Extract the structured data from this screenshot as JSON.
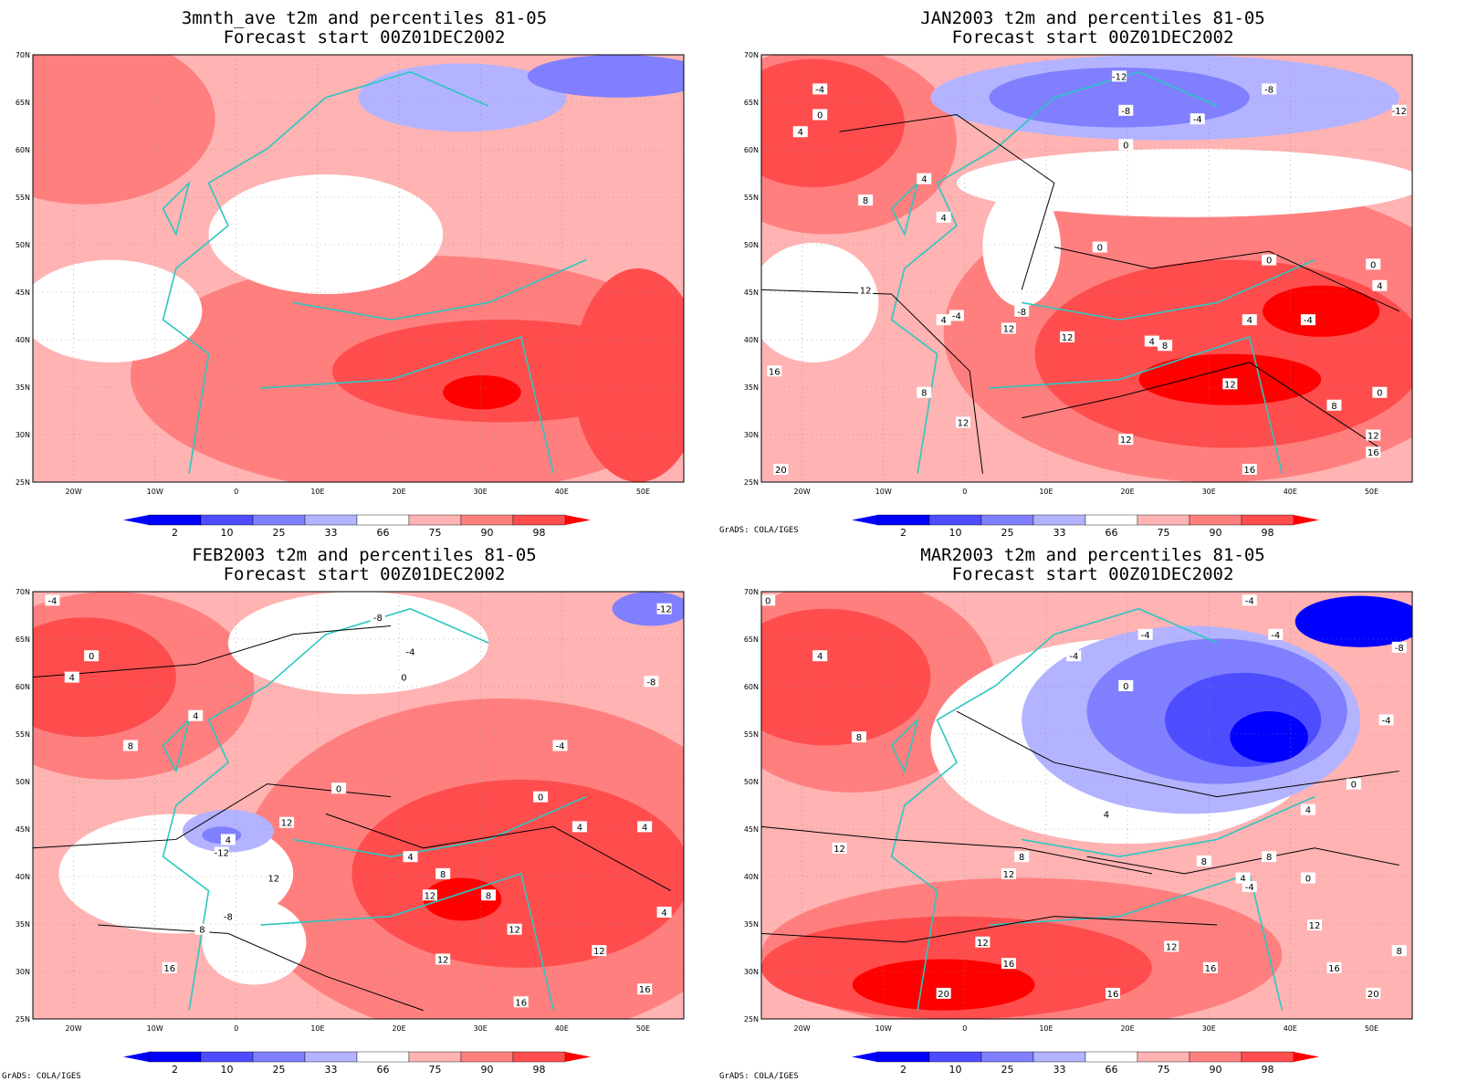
{
  "colors": {
    "p2": "#0000ff",
    "p10": "#4d4dff",
    "p25": "#7f7fff",
    "p33": "#b3b3ff",
    "mid": "#ffffff",
    "p66": "#ffb3b3",
    "p75": "#ff7f7f",
    "p90": "#ff4d4d",
    "p98": "#ff0000",
    "coast": "#2bc7c0",
    "contour": "#000000",
    "grid": "#8a8a8a"
  },
  "axes": {
    "lon_labels": [
      "20W",
      "10W",
      "0",
      "10E",
      "20E",
      "30E",
      "40E",
      "50E"
    ],
    "lat_labels": [
      "70N",
      "65N",
      "60N",
      "55N",
      "50N",
      "45N",
      "40N",
      "35N",
      "30N",
      "25N"
    ]
  },
  "colorbar": {
    "labels": [
      "2",
      "10",
      "25",
      "33",
      "66",
      "75",
      "90",
      "98"
    ]
  },
  "credit": "GrADS: COLA/IGES",
  "panels": [
    {
      "title_line1": "3mnth_ave t2m and percentiles 81-05",
      "title_line2": "Forecast start 00Z01DEC2002",
      "contour_labels": []
    },
    {
      "title_line1": "JAN2003 t2m and percentiles 81-05",
      "title_line2": "Forecast start 00Z01DEC2002",
      "contour_labels": [
        "-4",
        "0",
        "4",
        "-12",
        "-8",
        "-4",
        "-8",
        "-12",
        "0",
        "8",
        "4",
        "4",
        "0",
        "0",
        "0",
        "12",
        "-4",
        "4",
        "12",
        "-8",
        "12",
        "4",
        "8",
        "-4",
        "4",
        "4",
        "12",
        "16",
        "8",
        "8",
        "12",
        "12",
        "12",
        "16",
        "16",
        "20",
        "0"
      ]
    },
    {
      "title_line1": "FEB2003 t2m and percentiles 81-05",
      "title_line2": "Forecast start 00Z01DEC2002",
      "contour_labels": [
        "-4",
        "0",
        "4",
        "-8",
        "-4",
        "0",
        "-8",
        "-12",
        "4",
        "8",
        "-4",
        "0",
        "0",
        "4",
        "12",
        "4",
        "-12",
        "12",
        "-8",
        "8",
        "12",
        "4",
        "8",
        "12",
        "8",
        "12",
        "4",
        "16",
        "12",
        "16",
        "16",
        "4"
      ]
    },
    {
      "title_line1": "MAR2003 t2m and percentiles 81-05",
      "title_line2": "Forecast start 00Z01DEC2002",
      "contour_labels": [
        "-4",
        "0",
        "4",
        "-4",
        "-4",
        "-4",
        "-8",
        "0",
        "-4",
        "8",
        "0",
        "4",
        "12",
        "8",
        "12",
        "8",
        "8",
        "4",
        "-4",
        "0",
        "12",
        "16",
        "12",
        "12",
        "16",
        "8",
        "16",
        "20",
        "16",
        "20",
        "4"
      ]
    }
  ]
}
